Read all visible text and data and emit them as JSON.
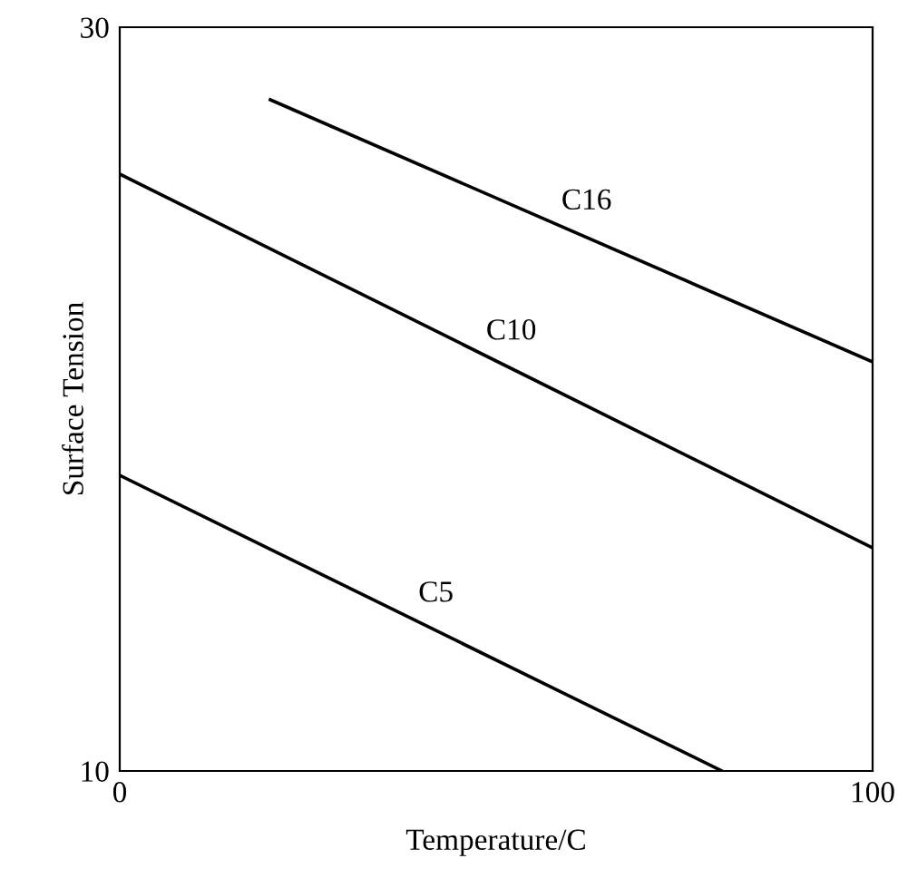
{
  "chart_data": {
    "type": "line",
    "xlabel": "Temperature/C",
    "ylabel": "Surface Tension",
    "xlim": [
      0,
      100
    ],
    "ylim": [
      10,
      30
    ],
    "xticks": [
      0,
      100
    ],
    "yticks": [
      10,
      30
    ],
    "grid": false,
    "legend": false,
    "marker": "none",
    "line_style": "solid",
    "series": [
      {
        "name": "C16",
        "color": "#000000",
        "x": [
          20,
          100
        ],
        "values": [
          28.05,
          21.0
        ]
      },
      {
        "name": "C10",
        "color": "#000000",
        "x": [
          0,
          100
        ],
        "values": [
          26.05,
          16.0
        ]
      },
      {
        "name": "C5",
        "color": "#000000",
        "x": [
          0,
          80
        ],
        "values": [
          17.95,
          10
        ]
      }
    ]
  }
}
